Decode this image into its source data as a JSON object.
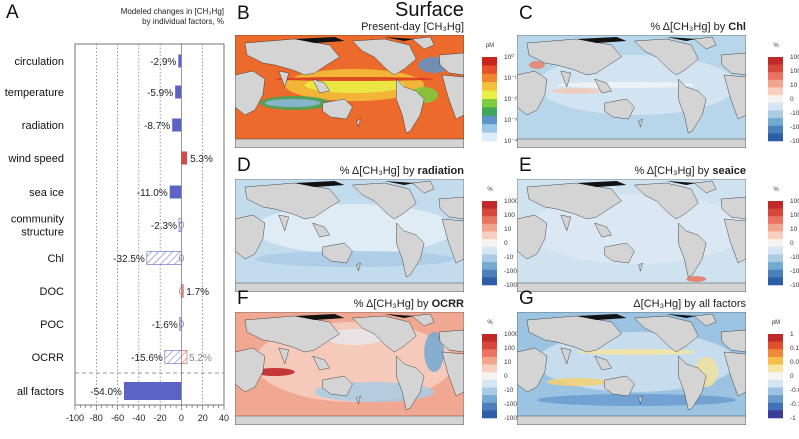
{
  "figure_title": "Surface",
  "panel_letters": [
    "A",
    "B",
    "C",
    "D",
    "E",
    "F",
    "G"
  ],
  "chart_data": {
    "type": "bar",
    "title": "Modeled changes in [CH3Hg] by individual factors, %",
    "title_lines": [
      "Modeled changes in [CH₃Hg]",
      "by individual factors, %"
    ],
    "orientation": "horizontal",
    "categories": [
      "circulation",
      "temperature",
      "radiation",
      "wind speed",
      "sea ice",
      "community structure",
      "Chl",
      "DOC",
      "POC",
      "OCRR",
      "all factors"
    ],
    "category_lines": [
      [
        "circulation"
      ],
      [
        "temperature"
      ],
      [
        "radiation"
      ],
      [
        "wind speed"
      ],
      [
        "sea ice"
      ],
      [
        "community",
        "structure"
      ],
      [
        "Chl"
      ],
      [
        "DOC"
      ],
      [
        "POC"
      ],
      [
        "OCRR"
      ],
      [
        "all factors"
      ]
    ],
    "series": [
      {
        "name": "primary",
        "values": [
          -2.9,
          -5.9,
          -8.7,
          5.3,
          -11.0,
          -2.3,
          -32.5,
          1.7,
          -1.6,
          -15.6,
          -54.0
        ],
        "labels": [
          "-2.9%",
          "-5.9%",
          "-8.7%",
          "5.3%",
          "-11.0%",
          "-2.3%",
          "-32.5%",
          "1.7%",
          "-1.6%",
          "-15.6%",
          "-54.0%"
        ],
        "hatched": [
          false,
          false,
          false,
          false,
          false,
          true,
          true,
          false,
          false,
          true,
          false
        ]
      },
      {
        "name": "OCRR positive",
        "category": "OCRR",
        "value": 5.2,
        "label": "5.2%",
        "hatched": true
      }
    ],
    "xlim": [
      -100,
      40
    ],
    "xticks": [
      -100,
      -80,
      -60,
      -40,
      -20,
      0,
      20,
      40
    ],
    "xtick_labels": [
      "-100",
      "-80",
      "-60",
      "-40",
      "-20",
      "0",
      "20",
      "40"
    ],
    "grid": "vertical dotted",
    "colors": {
      "negative": "#5b64c4",
      "positive": "#d44a4a"
    }
  },
  "maps": {
    "B": {
      "title": "Present-day [CH₃Hg]",
      "unit": "pM",
      "cb_labels": [
        "10⁰",
        "10⁻¹",
        "10⁻²",
        "10⁻³",
        "10⁻⁴"
      ],
      "colors": [
        "#c8241c",
        "#e8502a",
        "#f0862e",
        "#f4c23a",
        "#e9ee44",
        "#7ccc3c",
        "#3da85a",
        "#5e94c8",
        "#9cc8e8",
        "#dcecf8"
      ]
    },
    "C": {
      "title_prefix": "% Δ[CH₃Hg] by ",
      "title_bold": "Chl",
      "unit": "%",
      "cb_labels": [
        "1000",
        "100",
        "10",
        "0",
        "-10",
        "-100",
        "-1000"
      ]
    },
    "D": {
      "title_prefix": "% Δ[CH₃Hg] by ",
      "title_bold": "radiation",
      "unit": "%",
      "cb_labels": [
        "1000",
        "100",
        "10",
        "0",
        "-10",
        "-100",
        "-1000"
      ]
    },
    "E": {
      "title_prefix": "% Δ[CH₃Hg] by ",
      "title_bold": "seaice",
      "unit": "%",
      "cb_labels": [
        "1000",
        "100",
        "10",
        "0",
        "-10",
        "-100",
        "-1000"
      ]
    },
    "F": {
      "title_prefix": "% Δ[CH₃Hg] by ",
      "title_bold": "OCRR",
      "unit": "%",
      "cb_labels": [
        "1000",
        "100",
        "10",
        "0",
        "-10",
        "-100",
        "-1000"
      ]
    },
    "G": {
      "title_prefix": "Δ[CH₃Hg] by all factors",
      "title_bold": "",
      "unit": "pM",
      "cb_labels": [
        "1",
        "0.1",
        "0.01",
        "0",
        "-0.01",
        "-0.1",
        "-1"
      ]
    },
    "diverging_colors": [
      "#c0282a",
      "#d8473c",
      "#e87462",
      "#f3a48c",
      "#f9d0c0",
      "#f6f2ee",
      "#d6e6f2",
      "#a9cbe4",
      "#74a9d2",
      "#4a80bc",
      "#2f5ea8"
    ],
    "allfactors_colors": [
      "#c0282a",
      "#e0502e",
      "#ef8a3a",
      "#f5c04a",
      "#f6e6a0",
      "#f4f4f0",
      "#d4e6f2",
      "#9cc4e2",
      "#6a9cd0",
      "#4470b8",
      "#3a3c9c"
    ]
  }
}
